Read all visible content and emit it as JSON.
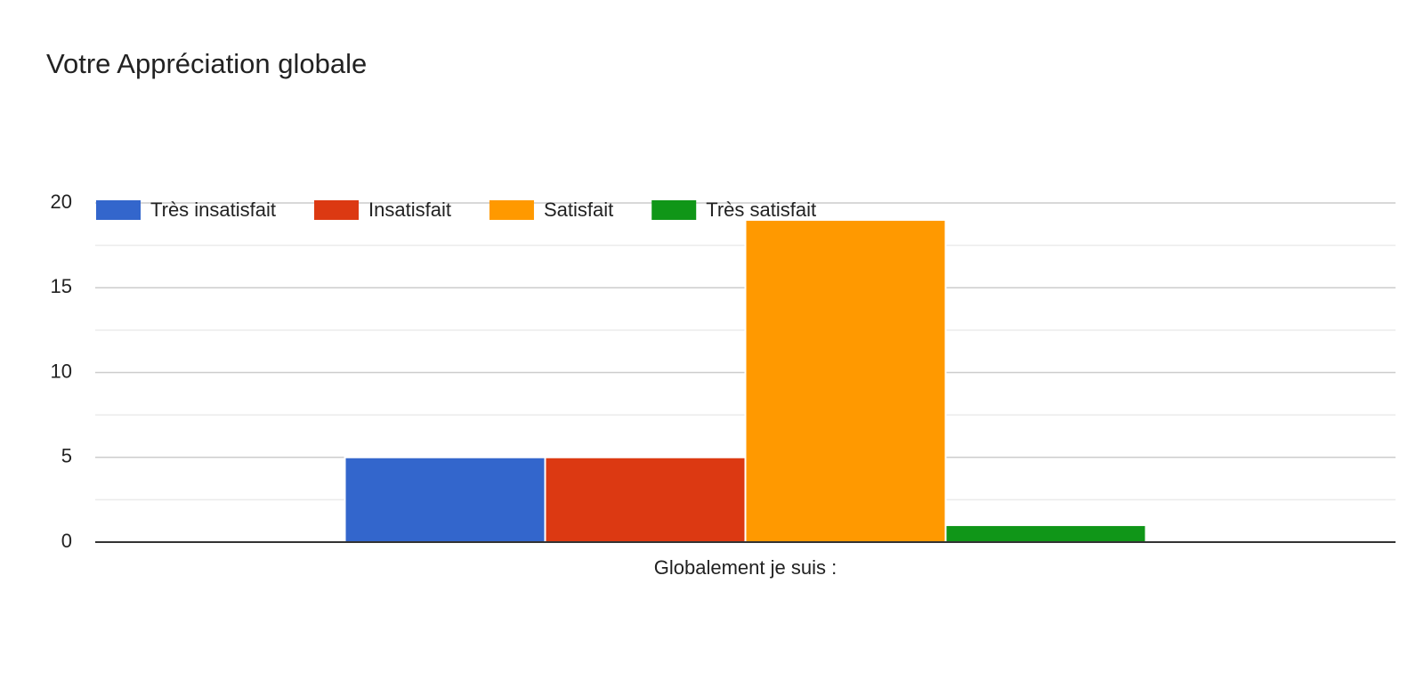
{
  "chart_data": {
    "type": "bar",
    "title": "Votre Appréciation globale",
    "categories": [
      "Globalement je suis :"
    ],
    "series": [
      {
        "name": "Très insatisfait",
        "color": "#3366cc",
        "values": [
          5
        ]
      },
      {
        "name": "Insatisfait",
        "color": "#dc3912",
        "values": [
          5
        ]
      },
      {
        "name": "Satisfait",
        "color": "#ff9900",
        "values": [
          19
        ]
      },
      {
        "name": "Très satisfait",
        "color": "#109618",
        "values": [
          1
        ]
      }
    ],
    "ylim": [
      0,
      20
    ],
    "yticks": [
      0,
      5,
      10,
      15,
      20
    ],
    "minor_yticks": [
      2.5,
      7.5,
      12.5,
      17.5
    ],
    "grid": true,
    "legend": "top"
  }
}
